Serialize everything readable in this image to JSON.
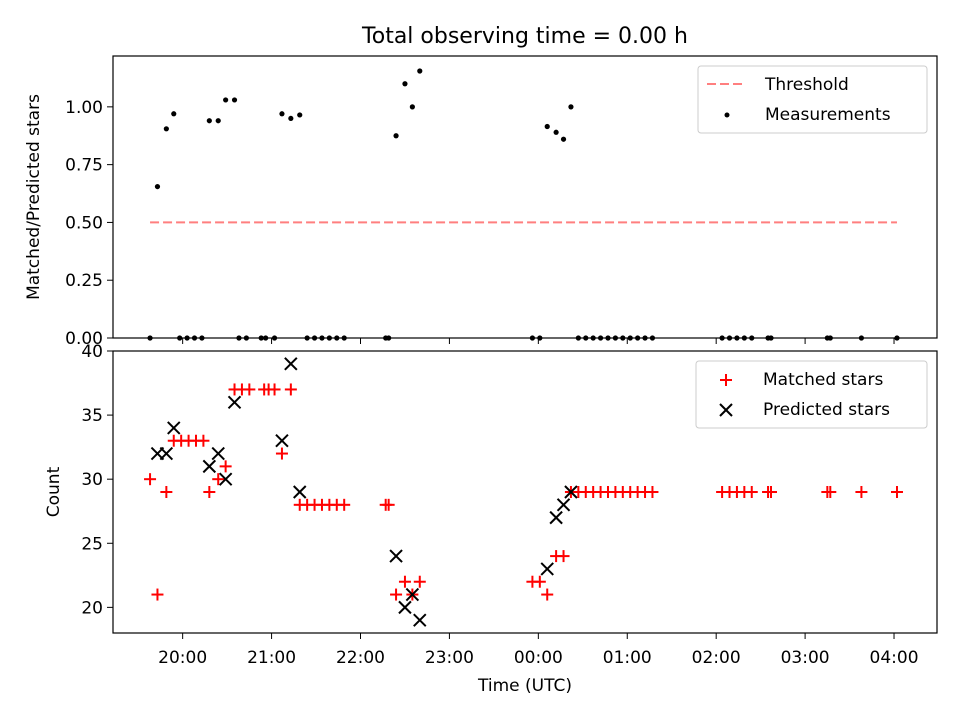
{
  "chart_data": [
    {
      "type": "scatter",
      "title": "Total observing time = 0.00 h",
      "xlabel": "",
      "ylabel": "Matched/Predicted stars",
      "ylim": [
        0,
        1.22
      ],
      "yticks": [
        "0.00",
        "0.25",
        "0.50",
        "0.75",
        "1.00"
      ],
      "legend": {
        "placement": "top-right",
        "entries": [
          "Threshold",
          "Measurements"
        ]
      },
      "threshold": {
        "name": "Threshold",
        "value": 0.5,
        "x_start": "19:38",
        "x_end": "04:02",
        "color": "#ff7f7f"
      },
      "series": [
        {
          "name": "Measurements",
          "color": "#000000",
          "points": [
            [
              "19:38",
              0.0
            ],
            [
              "19:43",
              0.655
            ],
            [
              "19:49",
              0.905
            ],
            [
              "19:54",
              0.97
            ],
            [
              "19:58",
              0.0
            ],
            [
              "20:03",
              0.0
            ],
            [
              "20:08",
              0.0
            ],
            [
              "20:13",
              0.0
            ],
            [
              "20:18",
              0.94
            ],
            [
              "20:24",
              0.94
            ],
            [
              "20:29",
              1.03
            ],
            [
              "20:35",
              1.03
            ],
            [
              "20:38",
              0.0
            ],
            [
              "20:43",
              0.0
            ],
            [
              "20:53",
              0.0
            ],
            [
              "20:56",
              0.0
            ],
            [
              "21:02",
              0.0
            ],
            [
              "21:07",
              0.97
            ],
            [
              "21:13",
              0.95
            ],
            [
              "21:19",
              0.965
            ],
            [
              "21:24",
              0.0
            ],
            [
              "21:29",
              0.0
            ],
            [
              "21:34",
              0.0
            ],
            [
              "21:39",
              0.0
            ],
            [
              "21:44",
              0.0
            ],
            [
              "21:49",
              0.0
            ],
            [
              "22:17",
              0.0
            ],
            [
              "22:19",
              0.0
            ],
            [
              "22:24",
              0.875
            ],
            [
              "22:30",
              1.1
            ],
            [
              "22:35",
              1.0
            ],
            [
              "22:40",
              1.155
            ],
            [
              "23:56",
              0.0
            ],
            [
              "00:01",
              0.0
            ],
            [
              "00:06",
              0.915
            ],
            [
              "00:12",
              0.89
            ],
            [
              "00:17",
              0.86
            ],
            [
              "00:22",
              1.0
            ],
            [
              "00:27",
              0.0
            ],
            [
              "00:32",
              0.0
            ],
            [
              "00:37",
              0.0
            ],
            [
              "00:42",
              0.0
            ],
            [
              "00:47",
              0.0
            ],
            [
              "00:52",
              0.0
            ],
            [
              "00:57",
              0.0
            ],
            [
              "01:02",
              0.0
            ],
            [
              "01:07",
              0.0
            ],
            [
              "01:12",
              0.0
            ],
            [
              "01:17",
              0.0
            ],
            [
              "02:04",
              0.0
            ],
            [
              "02:09",
              0.0
            ],
            [
              "02:14",
              0.0
            ],
            [
              "02:19",
              0.0
            ],
            [
              "02:24",
              0.0
            ],
            [
              "02:35",
              0.0
            ],
            [
              "02:37",
              0.0
            ],
            [
              "03:15",
              0.0
            ],
            [
              "03:17",
              0.0
            ],
            [
              "03:38",
              0.0
            ],
            [
              "04:02",
              0.0
            ]
          ]
        }
      ]
    },
    {
      "type": "scatter",
      "title": "",
      "xlabel": "Time (UTC)",
      "ylabel": "Count",
      "ylim": [
        18,
        40
      ],
      "yticks": [
        "20",
        "25",
        "30",
        "35",
        "40"
      ],
      "xlim": [
        "19:13",
        "04:29"
      ],
      "xticks": [
        "20:00",
        "21:00",
        "22:00",
        "23:00",
        "00:00",
        "01:00",
        "02:00",
        "03:00",
        "04:00"
      ],
      "legend": {
        "placement": "top-right",
        "entries": [
          "Matched stars",
          "Predicted stars"
        ]
      },
      "series": [
        {
          "name": "Matched stars",
          "marker": "plus",
          "color": "#ff0000",
          "points": [
            [
              "19:38",
              30
            ],
            [
              "19:43",
              21
            ],
            [
              "19:49",
              29
            ],
            [
              "19:54",
              33
            ],
            [
              "19:59",
              33
            ],
            [
              "20:04",
              33
            ],
            [
              "20:09",
              33
            ],
            [
              "20:14",
              33
            ],
            [
              "20:18",
              29
            ],
            [
              "20:24",
              30
            ],
            [
              "20:29",
              31
            ],
            [
              "20:35",
              37
            ],
            [
              "20:40",
              37
            ],
            [
              "20:45",
              37
            ],
            [
              "20:55",
              37
            ],
            [
              "20:58",
              37
            ],
            [
              "21:02",
              37
            ],
            [
              "21:07",
              32
            ],
            [
              "21:13",
              37
            ],
            [
              "21:19",
              28
            ],
            [
              "21:24",
              28
            ],
            [
              "21:29",
              28
            ],
            [
              "21:34",
              28
            ],
            [
              "21:39",
              28
            ],
            [
              "21:44",
              28
            ],
            [
              "21:49",
              28
            ],
            [
              "22:17",
              28
            ],
            [
              "22:19",
              28
            ],
            [
              "22:24",
              21
            ],
            [
              "22:30",
              22
            ],
            [
              "22:35",
              21
            ],
            [
              "22:40",
              22
            ],
            [
              "23:56",
              22
            ],
            [
              "00:01",
              22
            ],
            [
              "00:06",
              21
            ],
            [
              "00:12",
              24
            ],
            [
              "00:17",
              24
            ],
            [
              "00:22",
              29
            ],
            [
              "00:27",
              29
            ],
            [
              "00:32",
              29
            ],
            [
              "00:37",
              29
            ],
            [
              "00:42",
              29
            ],
            [
              "00:47",
              29
            ],
            [
              "00:52",
              29
            ],
            [
              "00:57",
              29
            ],
            [
              "01:02",
              29
            ],
            [
              "01:07",
              29
            ],
            [
              "01:12",
              29
            ],
            [
              "01:17",
              29
            ],
            [
              "02:04",
              29
            ],
            [
              "02:09",
              29
            ],
            [
              "02:14",
              29
            ],
            [
              "02:19",
              29
            ],
            [
              "02:24",
              29
            ],
            [
              "02:35",
              29
            ],
            [
              "02:37",
              29
            ],
            [
              "03:15",
              29
            ],
            [
              "03:17",
              29
            ],
            [
              "03:38",
              29
            ],
            [
              "04:02",
              29
            ]
          ]
        },
        {
          "name": "Predicted stars",
          "marker": "x",
          "color": "#000000",
          "points": [
            [
              "19:43",
              32
            ],
            [
              "19:49",
              32
            ],
            [
              "19:54",
              34
            ],
            [
              "20:18",
              31
            ],
            [
              "20:24",
              32
            ],
            [
              "20:29",
              30
            ],
            [
              "20:35",
              36
            ],
            [
              "21:07",
              33
            ],
            [
              "21:13",
              39
            ],
            [
              "21:19",
              29
            ],
            [
              "22:24",
              24
            ],
            [
              "22:30",
              20
            ],
            [
              "22:35",
              21
            ],
            [
              "22:40",
              19
            ],
            [
              "00:06",
              23
            ],
            [
              "00:12",
              27
            ],
            [
              "00:17",
              28
            ],
            [
              "00:22",
              29
            ]
          ]
        }
      ]
    }
  ]
}
